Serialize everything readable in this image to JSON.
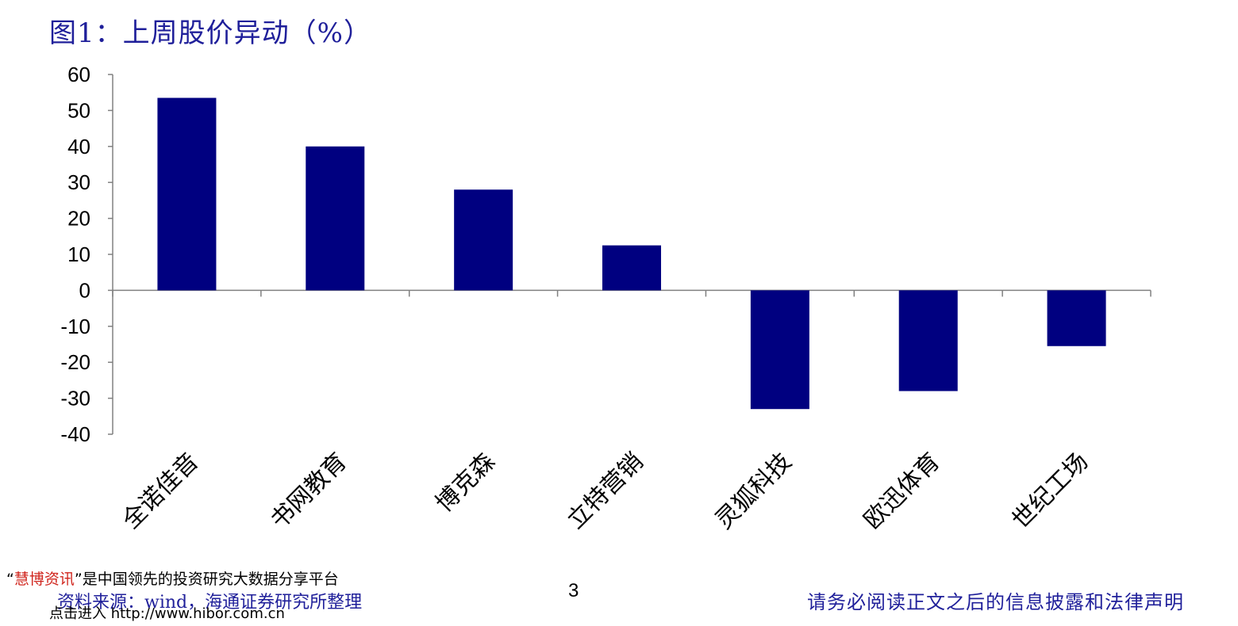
{
  "title": "图1：上周股价异动（%）",
  "chart_data": {
    "type": "bar",
    "categories": [
      "全诺佳音",
      "书网教育",
      "博克森",
      "立特营销",
      "灵狐科技",
      "欧迅体育",
      "世纪工场"
    ],
    "values": [
      53.5,
      40.0,
      28.0,
      12.5,
      -33.0,
      -28.0,
      -15.5
    ],
    "ylim": [
      -40,
      60
    ],
    "yticks": [
      60,
      50,
      40,
      30,
      20,
      10,
      0,
      -10,
      -20,
      -30,
      -40
    ],
    "bar_color": "#000080",
    "grid": false,
    "title": "",
    "xlabel": "",
    "ylabel": ""
  },
  "footer": {
    "promo_quote_open": "“",
    "promo_brand": "慧博资讯",
    "promo_rest": "”是中国领先的投资研究大数据分享平台",
    "source": "资料来源：wind，海通证券研究所整理",
    "link": "点击进入 http://www.hibor.com.cn",
    "page_number": "3",
    "disclaimer": "请务必阅读正文之后的信息披露和法律声明"
  }
}
